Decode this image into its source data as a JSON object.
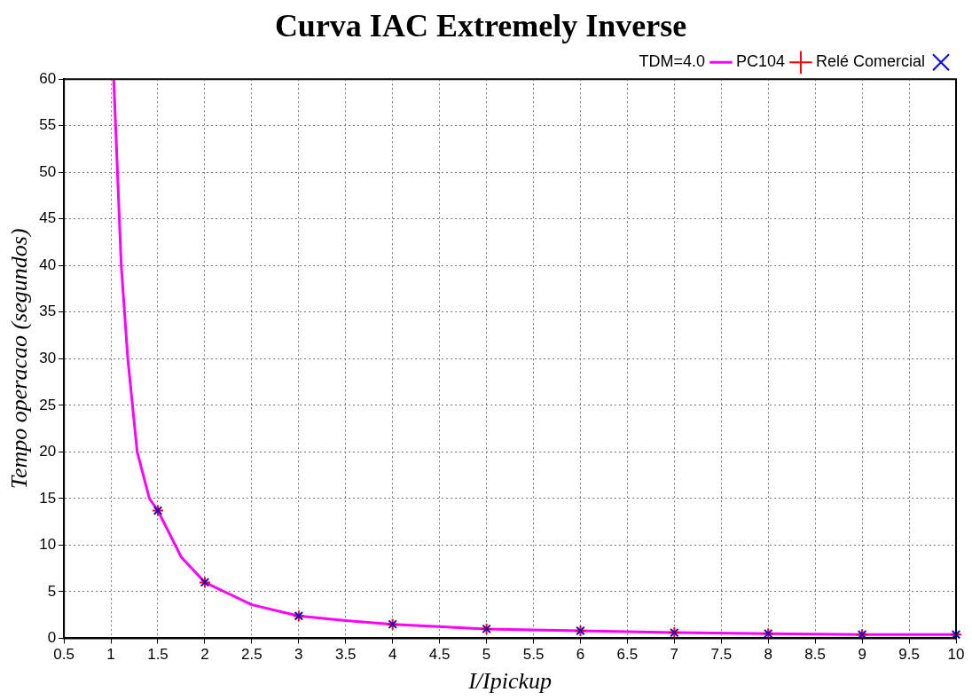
{
  "chart_data": {
    "type": "line",
    "title": "Curva IAC Extremely Inverse",
    "xlabel": "I/Ipickup",
    "ylabel": "Tempo operacao (segundos)",
    "xlim": [
      0.5,
      10
    ],
    "xticks": [
      0.5,
      1,
      1.5,
      2,
      2.5,
      3,
      3.5,
      4,
      4.5,
      5,
      5.5,
      6,
      6.5,
      7,
      7.5,
      8,
      8.5,
      9,
      9.5,
      10
    ],
    "ylim": [
      0,
      60
    ],
    "yticks": [
      0,
      5,
      10,
      15,
      20,
      25,
      30,
      35,
      40,
      45,
      50,
      55,
      60
    ],
    "grid": true,
    "legend": "top right",
    "series": [
      {
        "name": "TDM=4.0",
        "type": "line",
        "color": "#ff00ff",
        "marker": "none",
        "x": [
          1.03,
          1.05,
          1.11,
          1.18,
          1.28,
          1.41,
          1.5,
          1.75,
          2,
          2.5,
          3,
          3.5,
          4,
          5,
          6,
          7,
          8,
          9,
          10
        ],
        "values": [
          60,
          55,
          40,
          30,
          20,
          15,
          13.7,
          8.7,
          6,
          3.6,
          2.4,
          1.9,
          1.5,
          1,
          0.8,
          0.6,
          0.5,
          0.4,
          0.4
        ]
      },
      {
        "name": "PC104",
        "type": "scatter",
        "color": "#ff0000",
        "marker": "plus",
        "x": [
          1.5,
          2,
          3,
          4,
          5,
          6,
          7,
          8,
          9,
          10
        ],
        "values": [
          13.7,
          6,
          2.4,
          1.5,
          1,
          0.8,
          0.6,
          0.5,
          0.4,
          0.4
        ]
      },
      {
        "name": "Relé Comercial",
        "type": "scatter",
        "color": "#0000ff",
        "marker": "cross",
        "x": [
          1.5,
          2,
          3,
          4,
          5,
          6,
          7,
          8,
          9,
          10
        ],
        "values": [
          13.7,
          6,
          2.4,
          1.5,
          1,
          0.8,
          0.6,
          0.5,
          0.4,
          0.4
        ]
      }
    ]
  }
}
